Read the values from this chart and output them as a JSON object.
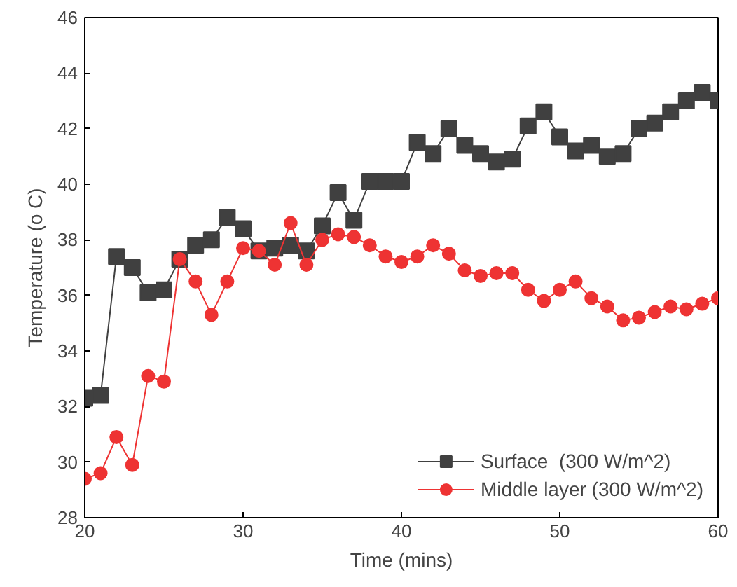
{
  "chart_data": {
    "type": "line",
    "xlabel": "Time (mins)",
    "ylabel": "Temperature (o C)",
    "x": [
      20,
      21,
      22,
      23,
      24,
      25,
      26,
      27,
      28,
      29,
      30,
      31,
      32,
      33,
      34,
      35,
      36,
      37,
      38,
      39,
      40,
      41,
      42,
      43,
      44,
      45,
      46,
      47,
      48,
      49,
      50,
      51,
      52,
      53,
      54,
      55,
      56,
      57,
      58,
      59,
      60
    ],
    "series": [
      {
        "name": "Surface  (300 W/m^2)",
        "color": "#404040",
        "marker": "square",
        "values": [
          32.3,
          32.4,
          37.4,
          37.0,
          36.1,
          36.2,
          37.3,
          37.8,
          38.0,
          38.8,
          38.4,
          37.6,
          37.7,
          37.8,
          37.6,
          38.5,
          39.7,
          38.7,
          40.1,
          40.1,
          40.1,
          41.5,
          41.1,
          42.0,
          41.4,
          41.1,
          40.8,
          40.9,
          42.1,
          42.6,
          41.7,
          41.2,
          41.4,
          41.0,
          41.1,
          42.0,
          42.2,
          42.6,
          43.0,
          43.3,
          43.0
        ]
      },
      {
        "name": "Middle layer (300 W/m^2)",
        "color": "#ee3333",
        "marker": "circle",
        "values": [
          29.4,
          29.6,
          30.9,
          29.9,
          33.1,
          32.9,
          37.3,
          36.5,
          35.3,
          36.5,
          37.7,
          37.6,
          37.1,
          38.6,
          37.1,
          38.0,
          38.2,
          38.1,
          37.8,
          37.4,
          37.2,
          37.4,
          37.8,
          37.5,
          36.9,
          36.7,
          36.8,
          36.8,
          36.2,
          35.8,
          36.2,
          36.5,
          35.9,
          35.6,
          35.1,
          35.2,
          35.4,
          35.6,
          35.5,
          35.7,
          35.9
        ]
      }
    ],
    "xlim": [
      20,
      60
    ],
    "xticks": [
      20,
      30,
      40,
      50,
      60
    ],
    "ylim": [
      28,
      46
    ],
    "yticks": [
      28,
      30,
      32,
      34,
      36,
      38,
      40,
      42,
      44,
      46
    ],
    "grid": false,
    "legend": "bottom right",
    "line_style": "solid"
  }
}
